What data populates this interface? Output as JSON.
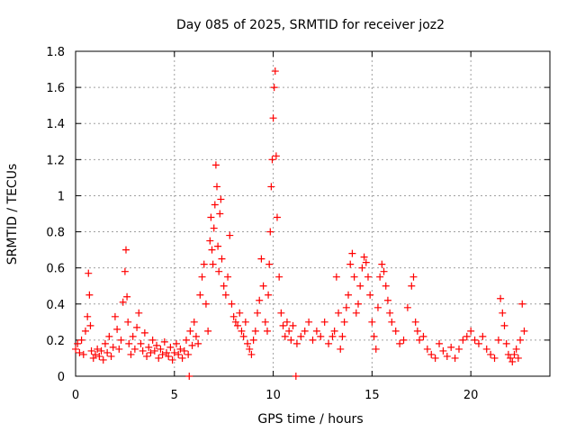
{
  "chart_data": {
    "type": "scatter",
    "title": "Day 085 of 2025, SRMTID for receiver joz2",
    "xlabel": "GPS time / hours",
    "ylabel": "SRMTID / TECUs",
    "xlim": [
      0,
      24
    ],
    "ylim": [
      0,
      1.8
    ],
    "grid": true,
    "marker": "+",
    "color": "#ff0000",
    "xticks": [
      0,
      5,
      10,
      15,
      20
    ],
    "xtick_labels": [
      "0",
      "5",
      "10",
      "15",
      "20"
    ],
    "yticks": [
      0,
      0.2,
      0.4,
      0.6,
      0.8,
      1.0,
      1.2,
      1.4,
      1.6,
      1.8
    ],
    "ytick_labels": [
      "0",
      "0.2",
      "0.4",
      "0.6",
      "0.8",
      "1",
      "1.2",
      "1.4",
      "1.6",
      "1.8"
    ],
    "series": [
      {
        "name": "SRMTID",
        "x": [
          0.0,
          0.1,
          0.2,
          0.3,
          0.4,
          0.5,
          0.6,
          0.65,
          0.7,
          0.75,
          0.8,
          0.9,
          1.0,
          1.1,
          1.2,
          1.3,
          1.4,
          1.5,
          1.6,
          1.7,
          1.8,
          1.9,
          2.0,
          2.1,
          2.2,
          2.3,
          2.4,
          2.5,
          2.55,
          2.6,
          2.65,
          2.7,
          2.8,
          2.9,
          3.0,
          3.1,
          3.2,
          3.3,
          3.4,
          3.5,
          3.6,
          3.7,
          3.8,
          3.9,
          4.0,
          4.1,
          4.2,
          4.3,
          4.4,
          4.5,
          4.6,
          4.7,
          4.8,
          4.9,
          5.0,
          5.1,
          5.2,
          5.3,
          5.4,
          5.5,
          5.6,
          5.7,
          5.8,
          5.9,
          6.0,
          6.1,
          6.2,
          6.3,
          6.4,
          6.5,
          6.6,
          6.7,
          6.8,
          6.85,
          6.9,
          6.95,
          7.0,
          7.05,
          7.1,
          7.15,
          7.2,
          7.25,
          7.3,
          7.35,
          7.4,
          7.5,
          7.6,
          7.7,
          7.8,
          7.9,
          8.0,
          8.1,
          8.2,
          8.3,
          8.4,
          8.5,
          8.6,
          8.7,
          8.8,
          8.9,
          9.0,
          9.1,
          9.2,
          9.3,
          9.4,
          9.5,
          9.6,
          9.7,
          9.75,
          9.8,
          9.85,
          9.9,
          9.95,
          10.0,
          10.05,
          10.1,
          10.15,
          10.2,
          10.3,
          10.4,
          10.5,
          10.6,
          10.7,
          10.8,
          10.9,
          11.0,
          11.2,
          11.4,
          11.6,
          11.8,
          12.0,
          12.2,
          12.4,
          12.6,
          12.8,
          13.0,
          13.1,
          13.2,
          13.3,
          13.4,
          13.5,
          13.6,
          13.7,
          13.8,
          13.9,
          14.0,
          14.1,
          14.2,
          14.3,
          14.4,
          14.5,
          14.6,
          14.7,
          14.8,
          14.9,
          15.0,
          15.1,
          15.2,
          15.3,
          15.4,
          15.5,
          15.6,
          15.7,
          15.8,
          15.9,
          16.0,
          16.2,
          16.4,
          16.6,
          16.8,
          17.0,
          17.1,
          17.2,
          17.3,
          17.4,
          17.6,
          17.8,
          18.0,
          18.2,
          18.4,
          18.6,
          18.8,
          19.0,
          19.2,
          19.4,
          19.6,
          19.8,
          20.0,
          20.2,
          20.4,
          20.6,
          20.8,
          21.0,
          21.2,
          21.4,
          21.5,
          21.6,
          21.7,
          21.8,
          21.9,
          22.0,
          22.1,
          22.2,
          22.3,
          22.4,
          22.5,
          22.6,
          22.7,
          5.75,
          11.15
        ],
        "y": [
          0.15,
          0.18,
          0.13,
          0.2,
          0.12,
          0.25,
          0.33,
          0.57,
          0.45,
          0.28,
          0.14,
          0.1,
          0.12,
          0.15,
          0.11,
          0.14,
          0.09,
          0.18,
          0.13,
          0.22,
          0.11,
          0.16,
          0.33,
          0.26,
          0.15,
          0.2,
          0.41,
          0.58,
          0.7,
          0.44,
          0.3,
          0.18,
          0.12,
          0.22,
          0.15,
          0.27,
          0.35,
          0.18,
          0.14,
          0.24,
          0.11,
          0.16,
          0.13,
          0.2,
          0.14,
          0.17,
          0.1,
          0.15,
          0.12,
          0.19,
          0.13,
          0.11,
          0.16,
          0.09,
          0.13,
          0.18,
          0.12,
          0.15,
          0.1,
          0.14,
          0.2,
          0.12,
          0.25,
          0.17,
          0.3,
          0.22,
          0.18,
          0.45,
          0.55,
          0.62,
          0.4,
          0.25,
          0.75,
          0.88,
          0.7,
          0.62,
          0.82,
          0.95,
          1.17,
          1.05,
          0.72,
          0.58,
          0.9,
          0.98,
          0.65,
          0.5,
          0.45,
          0.55,
          0.78,
          0.4,
          0.33,
          0.3,
          0.28,
          0.35,
          0.25,
          0.22,
          0.3,
          0.18,
          0.15,
          0.12,
          0.2,
          0.25,
          0.35,
          0.42,
          0.65,
          0.5,
          0.3,
          0.25,
          0.45,
          0.62,
          0.8,
          1.05,
          1.2,
          1.43,
          1.6,
          1.69,
          1.22,
          0.88,
          0.55,
          0.35,
          0.28,
          0.22,
          0.3,
          0.25,
          0.2,
          0.28,
          0.18,
          0.22,
          0.25,
          0.3,
          0.2,
          0.25,
          0.22,
          0.3,
          0.18,
          0.22,
          0.25,
          0.55,
          0.35,
          0.15,
          0.22,
          0.3,
          0.38,
          0.45,
          0.62,
          0.68,
          0.55,
          0.35,
          0.4,
          0.5,
          0.6,
          0.66,
          0.63,
          0.55,
          0.45,
          0.3,
          0.22,
          0.15,
          0.38,
          0.55,
          0.62,
          0.58,
          0.5,
          0.42,
          0.35,
          0.3,
          0.25,
          0.18,
          0.2,
          0.38,
          0.5,
          0.55,
          0.3,
          0.25,
          0.2,
          0.22,
          0.15,
          0.12,
          0.1,
          0.18,
          0.14,
          0.11,
          0.16,
          0.1,
          0.15,
          0.2,
          0.22,
          0.25,
          0.2,
          0.18,
          0.22,
          0.15,
          0.12,
          0.1,
          0.2,
          0.43,
          0.35,
          0.28,
          0.18,
          0.12,
          0.1,
          0.08,
          0.12,
          0.15,
          0.1,
          0.2,
          0.4,
          0.25,
          0.0,
          0.0
        ]
      }
    ]
  }
}
